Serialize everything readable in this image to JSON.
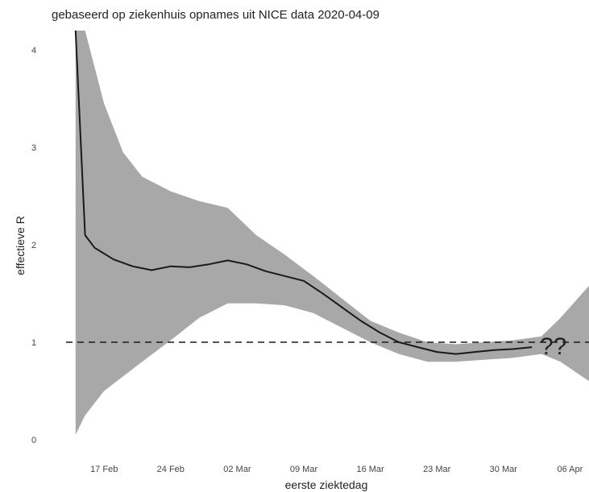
{
  "chart_data": {
    "type": "line",
    "title": "gebaseerd op ziekenhuis opnames uit NICE data 2020-04-09",
    "xlabel": "eerste ziektedag",
    "ylabel": "effectieve R",
    "x_tick_labels": [
      "17 Feb",
      "24 Feb",
      "02 Mar",
      "09 Mar",
      "16 Mar",
      "23 Mar",
      "30 Mar",
      "06 Apr"
    ],
    "y_tick_labels": [
      "0",
      "1",
      "2",
      "3",
      "4"
    ],
    "ylim": [
      0,
      4.2
    ],
    "xlim": [
      "2020-02-13",
      "2020-04-08"
    ],
    "reference_line": 1,
    "annotation": "??",
    "series": [
      {
        "x": [
          "2020-02-14",
          "2020-02-15",
          "2020-02-16",
          "2020-02-18",
          "2020-02-20",
          "2020-02-22",
          "2020-02-24",
          "2020-02-26",
          "2020-02-28",
          "2020-03-01",
          "2020-03-03",
          "2020-03-05",
          "2020-03-07",
          "2020-03-09",
          "2020-03-11",
          "2020-03-13",
          "2020-03-15",
          "2020-03-17",
          "2020-03-19",
          "2020-03-21",
          "2020-03-23",
          "2020-03-25",
          "2020-03-27",
          "2020-03-29",
          "2020-03-31",
          "2020-04-02"
        ],
        "y": [
          4.2,
          2.1,
          1.97,
          1.85,
          1.78,
          1.74,
          1.78,
          1.77,
          1.8,
          1.84,
          1.8,
          1.73,
          1.68,
          1.63,
          1.5,
          1.36,
          1.22,
          1.1,
          1.0,
          0.95,
          0.9,
          0.88,
          0.9,
          0.92,
          0.93,
          0.95
        ]
      }
    ],
    "band": {
      "x": [
        "2020-02-14",
        "2020-02-15",
        "2020-02-17",
        "2020-02-19",
        "2020-02-21",
        "2020-02-24",
        "2020-02-27",
        "2020-03-01",
        "2020-03-04",
        "2020-03-07",
        "2020-03-10",
        "2020-03-13",
        "2020-03-16",
        "2020-03-19",
        "2020-03-22",
        "2020-03-25",
        "2020-03-28",
        "2020-03-31",
        "2020-04-03",
        "2020-04-05",
        "2020-04-08"
      ],
      "lower": [
        0.05,
        0.25,
        0.5,
        0.65,
        0.8,
        1.02,
        1.25,
        1.4,
        1.4,
        1.38,
        1.3,
        1.15,
        1.0,
        0.88,
        0.8,
        0.8,
        0.82,
        0.84,
        0.88,
        0.8,
        0.6
      ],
      "upper": [
        4.2,
        4.2,
        3.45,
        2.95,
        2.7,
        2.55,
        2.45,
        2.38,
        2.1,
        1.9,
        1.68,
        1.45,
        1.22,
        1.1,
        1.0,
        0.98,
        1.0,
        1.02,
        1.06,
        1.25,
        1.58
      ]
    },
    "colors": {
      "band": "#a8a8a8",
      "line": "#1a1a1a",
      "reference": "#1a1a1a"
    },
    "grid": false,
    "legend": "none"
  }
}
